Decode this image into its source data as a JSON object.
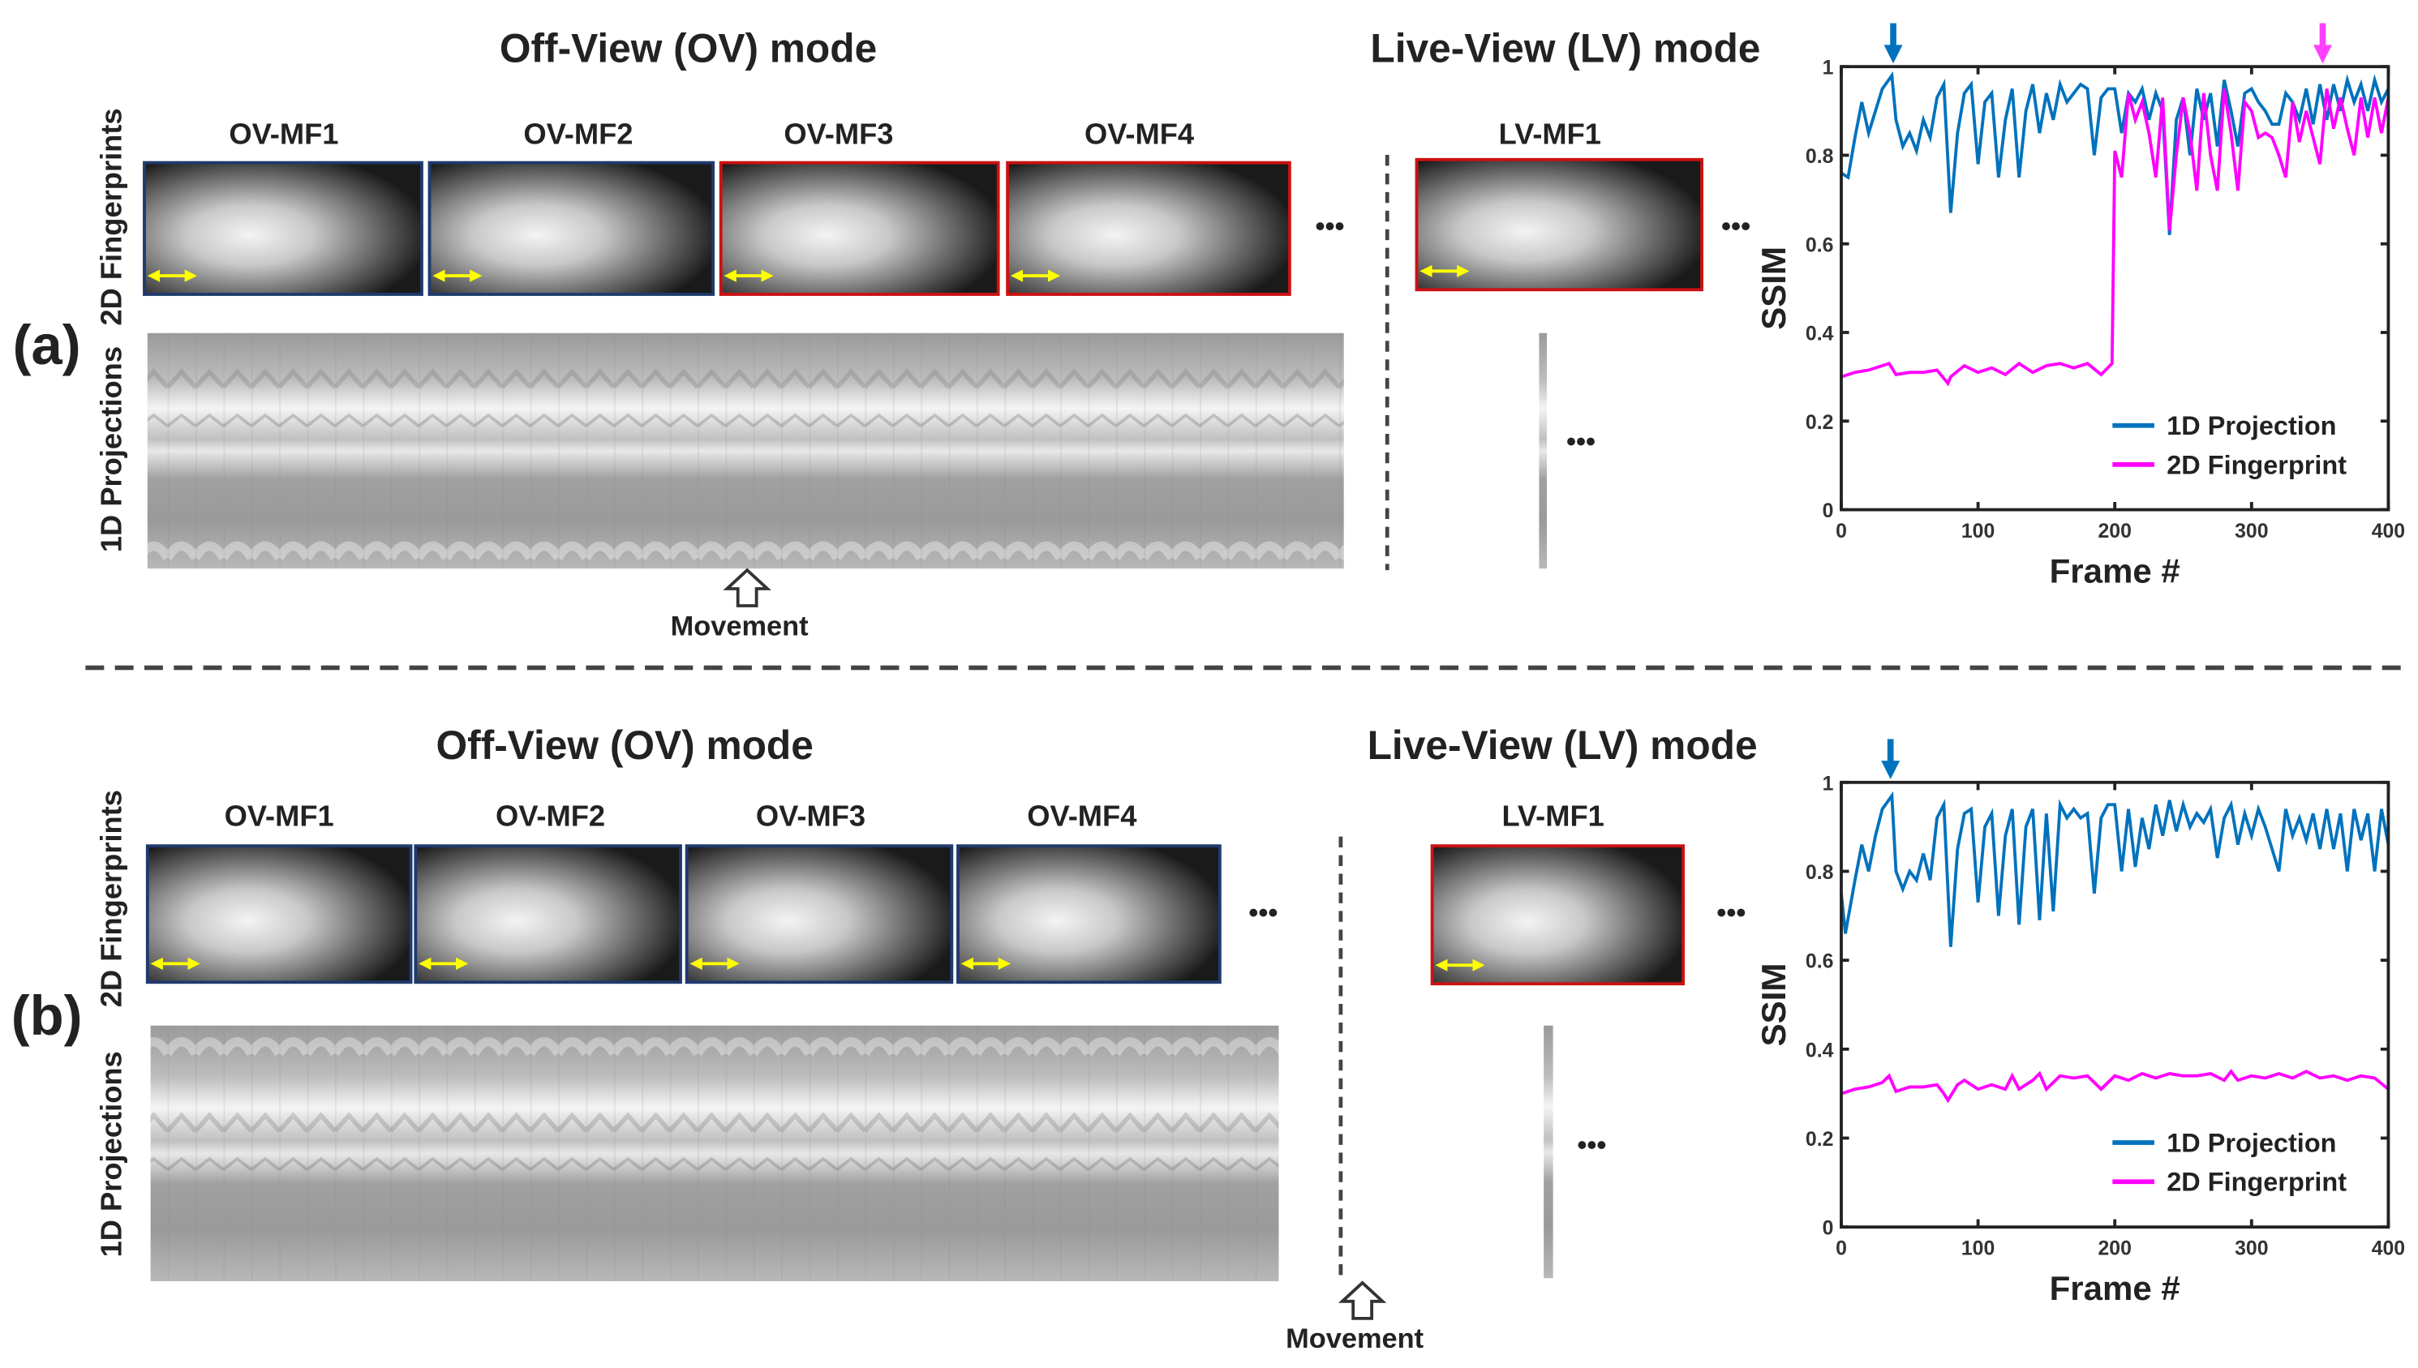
{
  "panels": [
    {
      "label": "(a)",
      "ov_title": "Off-View (OV) mode",
      "lv_title": "Live-View (LV) mode",
      "frames": [
        "OV-MF1",
        "OV-MF2",
        "OV-MF3",
        "OV-MF4"
      ],
      "lv_frame": "LV-MF1",
      "row_label_2d": "2D Fingerprints",
      "row_label_1d": "1D Projections",
      "ellipsis": "•••",
      "movement": "Movement"
    },
    {
      "label": "(b)",
      "ov_title": "Off-View (OV) mode",
      "lv_title": "Live-View (LV) mode",
      "frames": [
        "OV-MF1",
        "OV-MF2",
        "OV-MF3",
        "OV-MF4"
      ],
      "lv_frame": "LV-MF1",
      "row_label_2d": "2D Fingerprints",
      "row_label_1d": "1D Projections",
      "ellipsis": "•••",
      "movement": "Movement"
    }
  ],
  "colors": {
    "blue_frame": "#1f3a6e",
    "red_frame": "#cc1111",
    "proj": "#0072bd",
    "fp": "#ff00ff",
    "arrow_yellow": "#ffff00"
  },
  "chart_data": [
    {
      "type": "line",
      "xlabel": "Frame #",
      "ylabel": "SSIM",
      "xlim": [
        0,
        400
      ],
      "ylim": [
        0,
        1
      ],
      "xticks": [
        "0",
        "100",
        "200",
        "300",
        "400"
      ],
      "yticks": [
        "0",
        "0.2",
        "0.4",
        "0.6",
        "0.8",
        "1"
      ],
      "legend_position": "bottom-right",
      "markers": [
        {
          "frame": 38,
          "color": "#0072bd"
        },
        {
          "frame": 352,
          "color": "#ff40ff"
        }
      ],
      "series": [
        {
          "name": "1D Projection",
          "color": "#0072bd",
          "x": [
            0,
            5,
            10,
            15,
            20,
            25,
            30,
            37,
            40,
            45,
            50,
            55,
            60,
            65,
            70,
            75,
            80,
            85,
            90,
            95,
            100,
            105,
            110,
            115,
            120,
            125,
            130,
            135,
            140,
            145,
            150,
            155,
            160,
            165,
            170,
            175,
            180,
            185,
            190,
            195,
            200,
            205,
            210,
            215,
            220,
            225,
            230,
            235,
            240,
            245,
            250,
            255,
            260,
            265,
            270,
            275,
            280,
            285,
            290,
            295,
            300,
            305,
            310,
            315,
            320,
            325,
            330,
            335,
            340,
            345,
            350,
            355,
            360,
            365,
            370,
            375,
            380,
            385,
            390,
            395,
            400
          ],
          "y": [
            0.76,
            0.75,
            0.84,
            0.92,
            0.85,
            0.9,
            0.95,
            0.98,
            0.88,
            0.82,
            0.85,
            0.81,
            0.88,
            0.84,
            0.93,
            0.96,
            0.67,
            0.85,
            0.94,
            0.96,
            0.78,
            0.92,
            0.94,
            0.75,
            0.88,
            0.95,
            0.75,
            0.9,
            0.96,
            0.85,
            0.94,
            0.88,
            0.96,
            0.92,
            0.94,
            0.96,
            0.95,
            0.8,
            0.93,
            0.95,
            0.95,
            0.85,
            0.94,
            0.92,
            0.95,
            0.88,
            0.94,
            0.9,
            0.62,
            0.88,
            0.93,
            0.8,
            0.95,
            0.88,
            0.94,
            0.82,
            0.97,
            0.9,
            0.82,
            0.94,
            0.95,
            0.92,
            0.9,
            0.87,
            0.87,
            0.94,
            0.92,
            0.88,
            0.95,
            0.87,
            0.96,
            0.88,
            0.96,
            0.9,
            0.97,
            0.92,
            0.96,
            0.9,
            0.97,
            0.92,
            0.95
          ]
        },
        {
          "name": "2D Fingerprint",
          "color": "#ff00ff",
          "x": [
            0,
            10,
            20,
            30,
            35,
            40,
            50,
            60,
            70,
            78,
            80,
            90,
            100,
            110,
            120,
            130,
            140,
            150,
            160,
            170,
            180,
            190,
            198,
            200,
            205,
            210,
            215,
            220,
            225,
            230,
            235,
            240,
            245,
            250,
            255,
            260,
            265,
            270,
            275,
            280,
            285,
            290,
            295,
            300,
            305,
            310,
            315,
            320,
            325,
            330,
            335,
            340,
            345,
            350,
            355,
            360,
            365,
            370,
            375,
            380,
            385,
            390,
            395,
            400
          ],
          "y": [
            0.3,
            0.31,
            0.315,
            0.325,
            0.33,
            0.305,
            0.31,
            0.31,
            0.315,
            0.285,
            0.3,
            0.325,
            0.31,
            0.32,
            0.305,
            0.33,
            0.31,
            0.325,
            0.33,
            0.32,
            0.33,
            0.305,
            0.33,
            0.81,
            0.75,
            0.94,
            0.88,
            0.92,
            0.85,
            0.75,
            0.93,
            0.63,
            0.8,
            0.93,
            0.85,
            0.72,
            0.94,
            0.8,
            0.72,
            0.95,
            0.85,
            0.72,
            0.92,
            0.9,
            0.84,
            0.85,
            0.84,
            0.8,
            0.75,
            0.92,
            0.83,
            0.9,
            0.84,
            0.78,
            0.95,
            0.86,
            0.93,
            0.86,
            0.8,
            0.93,
            0.84,
            0.93,
            0.85,
            0.93
          ]
        }
      ]
    },
    {
      "type": "line",
      "xlabel": "Frame #",
      "ylabel": "SSIM",
      "xlim": [
        0,
        400
      ],
      "ylim": [
        0,
        1
      ],
      "xticks": [
        "0",
        "100",
        "200",
        "300",
        "400"
      ],
      "yticks": [
        "0",
        "0.2",
        "0.4",
        "0.6",
        "0.8",
        "1"
      ],
      "legend_position": "bottom-right",
      "markers": [
        {
          "frame": 36,
          "color": "#0072bd"
        }
      ],
      "series": [
        {
          "name": "1D Projection",
          "color": "#0072bd",
          "x": [
            0,
            3,
            10,
            15,
            20,
            25,
            30,
            37,
            40,
            45,
            50,
            55,
            60,
            65,
            70,
            75,
            80,
            85,
            90,
            95,
            100,
            105,
            110,
            115,
            120,
            125,
            130,
            135,
            140,
            145,
            150,
            155,
            160,
            165,
            170,
            175,
            180,
            185,
            190,
            195,
            200,
            205,
            210,
            215,
            220,
            225,
            230,
            235,
            240,
            245,
            250,
            255,
            260,
            265,
            270,
            275,
            280,
            285,
            290,
            295,
            300,
            305,
            310,
            315,
            320,
            325,
            330,
            335,
            340,
            345,
            350,
            355,
            360,
            365,
            370,
            375,
            380,
            385,
            390,
            395,
            400
          ],
          "y": [
            0.75,
            0.66,
            0.78,
            0.86,
            0.8,
            0.88,
            0.94,
            0.97,
            0.8,
            0.76,
            0.8,
            0.78,
            0.84,
            0.78,
            0.92,
            0.95,
            0.63,
            0.85,
            0.93,
            0.94,
            0.73,
            0.9,
            0.93,
            0.7,
            0.88,
            0.94,
            0.68,
            0.9,
            0.94,
            0.69,
            0.93,
            0.71,
            0.95,
            0.92,
            0.94,
            0.92,
            0.93,
            0.75,
            0.92,
            0.95,
            0.95,
            0.8,
            0.94,
            0.81,
            0.92,
            0.85,
            0.95,
            0.88,
            0.96,
            0.89,
            0.95,
            0.9,
            0.93,
            0.91,
            0.94,
            0.83,
            0.92,
            0.95,
            0.86,
            0.93,
            0.88,
            0.94,
            0.9,
            0.85,
            0.8,
            0.94,
            0.88,
            0.92,
            0.87,
            0.93,
            0.85,
            0.94,
            0.85,
            0.93,
            0.8,
            0.94,
            0.87,
            0.93,
            0.8,
            0.94,
            0.86
          ]
        },
        {
          "name": "2D Fingerprint",
          "color": "#ff00ff",
          "x": [
            0,
            10,
            20,
            30,
            35,
            40,
            50,
            60,
            70,
            75,
            78,
            85,
            90,
            100,
            110,
            120,
            125,
            130,
            140,
            145,
            150,
            160,
            170,
            180,
            190,
            200,
            210,
            220,
            230,
            240,
            250,
            260,
            270,
            280,
            285,
            290,
            300,
            310,
            320,
            330,
            340,
            350,
            360,
            370,
            380,
            390,
            400
          ],
          "y": [
            0.3,
            0.31,
            0.315,
            0.325,
            0.34,
            0.305,
            0.315,
            0.315,
            0.32,
            0.3,
            0.285,
            0.32,
            0.33,
            0.31,
            0.32,
            0.31,
            0.34,
            0.31,
            0.33,
            0.345,
            0.31,
            0.34,
            0.335,
            0.34,
            0.31,
            0.34,
            0.33,
            0.345,
            0.335,
            0.345,
            0.34,
            0.34,
            0.345,
            0.33,
            0.35,
            0.33,
            0.34,
            0.335,
            0.345,
            0.335,
            0.35,
            0.335,
            0.34,
            0.33,
            0.34,
            0.335,
            0.31
          ]
        }
      ]
    }
  ]
}
